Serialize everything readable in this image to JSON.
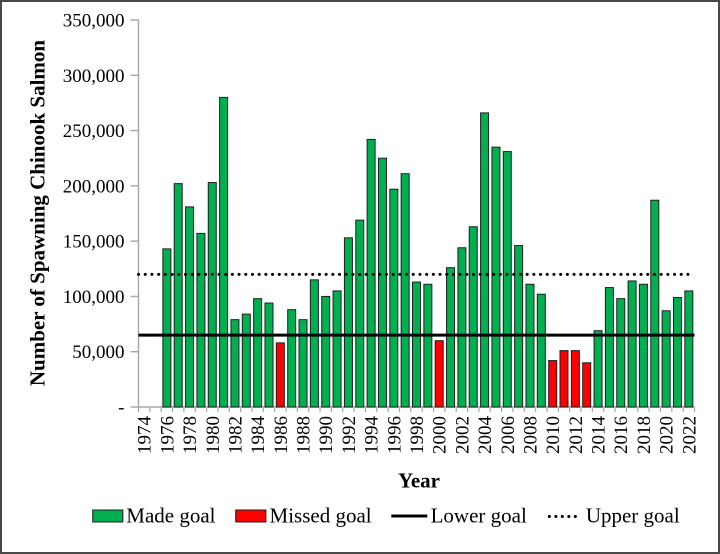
{
  "chart_data": {
    "type": "bar",
    "title": "",
    "ylabel": "Number of Spawning Chinook Salmon",
    "xlabel": "Year",
    "ylim": [
      0,
      350000
    ],
    "y_tick_step": 50000,
    "x_start_year": 1974,
    "x_end_year": 2022,
    "grid": false,
    "legend_position": "bottom",
    "lower_goal": 65000,
    "upper_goal": 120000,
    "colors": {
      "made": "#00AF50",
      "missed": "#FF0000",
      "bar_border": "#1f1f1f",
      "axis": "#A6A6A6",
      "goal_line": "#000000",
      "text": "#000000"
    },
    "y_ticks": [
      {
        "value": 0,
        "label": "-"
      },
      {
        "value": 50000,
        "label": "50,000"
      },
      {
        "value": 100000,
        "label": "100,000"
      },
      {
        "value": 150000,
        "label": "150,000"
      },
      {
        "value": 200000,
        "label": "200,000"
      },
      {
        "value": 250000,
        "label": "250,000"
      },
      {
        "value": 300000,
        "label": "300,000"
      },
      {
        "value": 350000,
        "label": "350,000"
      }
    ],
    "x_ticks": [
      {
        "year": 1974,
        "label": "1974"
      },
      {
        "year": 1976,
        "label": "1976"
      },
      {
        "year": 1978,
        "label": "1978"
      },
      {
        "year": 1980,
        "label": "1980"
      },
      {
        "year": 1982,
        "label": "1982"
      },
      {
        "year": 1984,
        "label": "1984"
      },
      {
        "year": 1986,
        "label": "1986"
      },
      {
        "year": 1988,
        "label": "1988"
      },
      {
        "year": 1990,
        "label": "1990"
      },
      {
        "year": 1992,
        "label": "1992"
      },
      {
        "year": 1994,
        "label": "1994"
      },
      {
        "year": 1996,
        "label": "1996"
      },
      {
        "year": 1998,
        "label": "1998"
      },
      {
        "year": 2000,
        "label": "2000"
      },
      {
        "year": 2002,
        "label": "2002"
      },
      {
        "year": 2004,
        "label": "2004"
      },
      {
        "year": 2006,
        "label": "2006"
      },
      {
        "year": 2008,
        "label": "2008"
      },
      {
        "year": 2010,
        "label": "2010"
      },
      {
        "year": 2012,
        "label": "2012"
      },
      {
        "year": 2014,
        "label": "2014"
      },
      {
        "year": 2016,
        "label": "2016"
      },
      {
        "year": 2018,
        "label": "2018"
      },
      {
        "year": 2020,
        "label": "2020"
      },
      {
        "year": 2022,
        "label": "2022"
      }
    ],
    "points": [
      {
        "year": 1976,
        "value": 143000,
        "status": "made"
      },
      {
        "year": 1977,
        "value": 202000,
        "status": "made"
      },
      {
        "year": 1978,
        "value": 181000,
        "status": "made"
      },
      {
        "year": 1979,
        "value": 157000,
        "status": "made"
      },
      {
        "year": 1980,
        "value": 203000,
        "status": "made"
      },
      {
        "year": 1981,
        "value": 280000,
        "status": "made"
      },
      {
        "year": 1982,
        "value": 79000,
        "status": "made"
      },
      {
        "year": 1983,
        "value": 84000,
        "status": "made"
      },
      {
        "year": 1984,
        "value": 98000,
        "status": "made"
      },
      {
        "year": 1985,
        "value": 94000,
        "status": "made"
      },
      {
        "year": 1986,
        "value": 58000,
        "status": "missed"
      },
      {
        "year": 1987,
        "value": 88000,
        "status": "made"
      },
      {
        "year": 1988,
        "value": 79000,
        "status": "made"
      },
      {
        "year": 1989,
        "value": 115000,
        "status": "made"
      },
      {
        "year": 1990,
        "value": 100000,
        "status": "made"
      },
      {
        "year": 1991,
        "value": 105000,
        "status": "made"
      },
      {
        "year": 1992,
        "value": 153000,
        "status": "made"
      },
      {
        "year": 1993,
        "value": 169000,
        "status": "made"
      },
      {
        "year": 1994,
        "value": 242000,
        "status": "made"
      },
      {
        "year": 1995,
        "value": 225000,
        "status": "made"
      },
      {
        "year": 1996,
        "value": 197000,
        "status": "made"
      },
      {
        "year": 1997,
        "value": 211000,
        "status": "made"
      },
      {
        "year": 1998,
        "value": 113000,
        "status": "made"
      },
      {
        "year": 1999,
        "value": 111000,
        "status": "made"
      },
      {
        "year": 2000,
        "value": 60000,
        "status": "missed"
      },
      {
        "year": 2001,
        "value": 126000,
        "status": "made"
      },
      {
        "year": 2002,
        "value": 144000,
        "status": "made"
      },
      {
        "year": 2003,
        "value": 163000,
        "status": "made"
      },
      {
        "year": 2004,
        "value": 266000,
        "status": "made"
      },
      {
        "year": 2005,
        "value": 235000,
        "status": "made"
      },
      {
        "year": 2006,
        "value": 231000,
        "status": "made"
      },
      {
        "year": 2007,
        "value": 146000,
        "status": "made"
      },
      {
        "year": 2008,
        "value": 111000,
        "status": "made"
      },
      {
        "year": 2009,
        "value": 102000,
        "status": "made"
      },
      {
        "year": 2010,
        "value": 42000,
        "status": "missed"
      },
      {
        "year": 2011,
        "value": 51000,
        "status": "missed"
      },
      {
        "year": 2012,
        "value": 51000,
        "status": "missed"
      },
      {
        "year": 2013,
        "value": 40000,
        "status": "missed"
      },
      {
        "year": 2014,
        "value": 69000,
        "status": "made"
      },
      {
        "year": 2015,
        "value": 108000,
        "status": "made"
      },
      {
        "year": 2016,
        "value": 98000,
        "status": "made"
      },
      {
        "year": 2017,
        "value": 114000,
        "status": "made"
      },
      {
        "year": 2018,
        "value": 111000,
        "status": "made"
      },
      {
        "year": 2019,
        "value": 187000,
        "status": "made"
      },
      {
        "year": 2020,
        "value": 87000,
        "status": "made"
      },
      {
        "year": 2021,
        "value": 99000,
        "status": "made"
      },
      {
        "year": 2022,
        "value": 105000,
        "status": "made"
      }
    ],
    "legend": [
      {
        "label": "Made goal",
        "type": "green-box"
      },
      {
        "label": "Missed goal",
        "type": "red-box"
      },
      {
        "label": "Lower goal",
        "type": "solid-line"
      },
      {
        "label": "Upper goal",
        "type": "dotted-line"
      }
    ]
  }
}
